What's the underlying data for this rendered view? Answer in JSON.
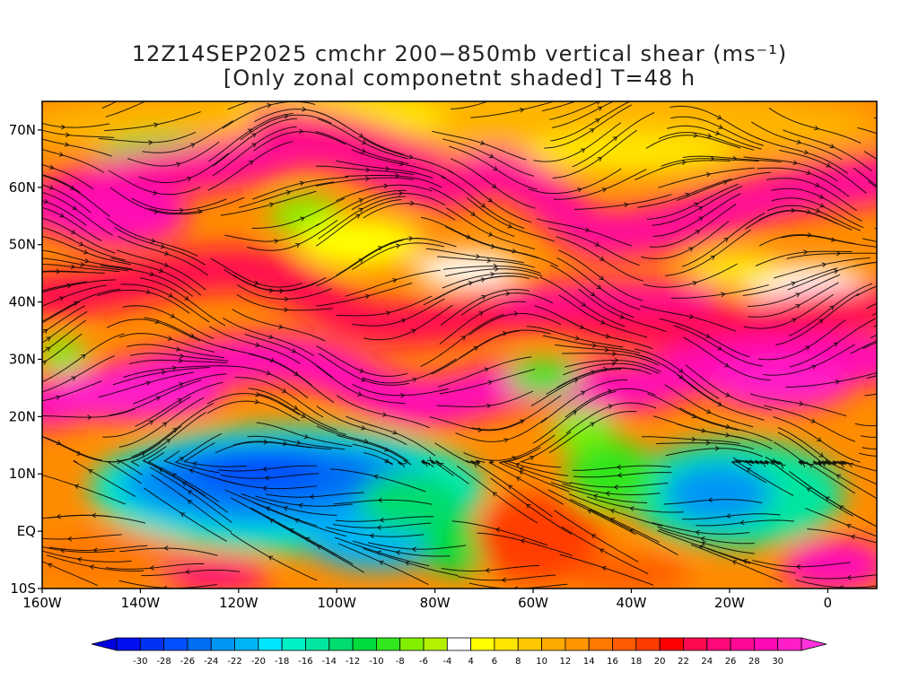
{
  "title_line1": "12Z14SEP2025 cmchr 200−850mb vertical shear (ms⁻¹)",
  "title_line2": "[Only zonal componetnt shaded] T=48 h",
  "map": {
    "lon_range": [
      -160,
      10
    ],
    "lat_range": [
      -10,
      75
    ],
    "lat_ticks": [
      {
        "value": 70,
        "label": "70N"
      },
      {
        "value": 60,
        "label": "60N"
      },
      {
        "value": 50,
        "label": "50N"
      },
      {
        "value": 40,
        "label": "40N"
      },
      {
        "value": 30,
        "label": "30N"
      },
      {
        "value": 20,
        "label": "20N"
      },
      {
        "value": 10,
        "label": "10N"
      },
      {
        "value": 0,
        "label": "EQ"
      },
      {
        "value": -10,
        "label": "10S"
      }
    ],
    "lon_ticks": [
      {
        "value": -160,
        "label": "160W"
      },
      {
        "value": -140,
        "label": "140W"
      },
      {
        "value": -120,
        "label": "120W"
      },
      {
        "value": -100,
        "label": "100W"
      },
      {
        "value": -80,
        "label": "80W"
      },
      {
        "value": -60,
        "label": "60W"
      },
      {
        "value": -40,
        "label": "40W"
      },
      {
        "value": -20,
        "label": "20W"
      },
      {
        "value": 0,
        "label": "0"
      }
    ],
    "shaded_field": "zonal component of 200-850mb vertical shear",
    "overlay": "streamlines (black)"
  },
  "colorbar": {
    "labels": [
      "-30",
      "-28",
      "-26",
      "-24",
      "-22",
      "-20",
      "-18",
      "-16",
      "-14",
      "-12",
      "-10",
      "-8",
      "-6",
      "-4",
      "4",
      "6",
      "8",
      "10",
      "12",
      "14",
      "16",
      "18",
      "20",
      "22",
      "24",
      "26",
      "28",
      "30"
    ],
    "colors": [
      "#0010f0",
      "#0032f5",
      "#0050ff",
      "#006ef5",
      "#0096f5",
      "#00b4f5",
      "#00e6ff",
      "#00f0c8",
      "#00e6a0",
      "#00dc6e",
      "#00dc3c",
      "#32e61e",
      "#82f000",
      "#b4f000",
      "#ffffff",
      "#ffff00",
      "#ffe600",
      "#ffc800",
      "#ffaa00",
      "#ff9600",
      "#ff7800",
      "#ff5a00",
      "#ff3c00",
      "#ff0000",
      "#ff0a50",
      "#ff0a78",
      "#ff0a96",
      "#ff0ab4",
      "#ff1ec8"
    ],
    "under_color": "#0000e0",
    "over_color": "#ff32dc"
  }
}
